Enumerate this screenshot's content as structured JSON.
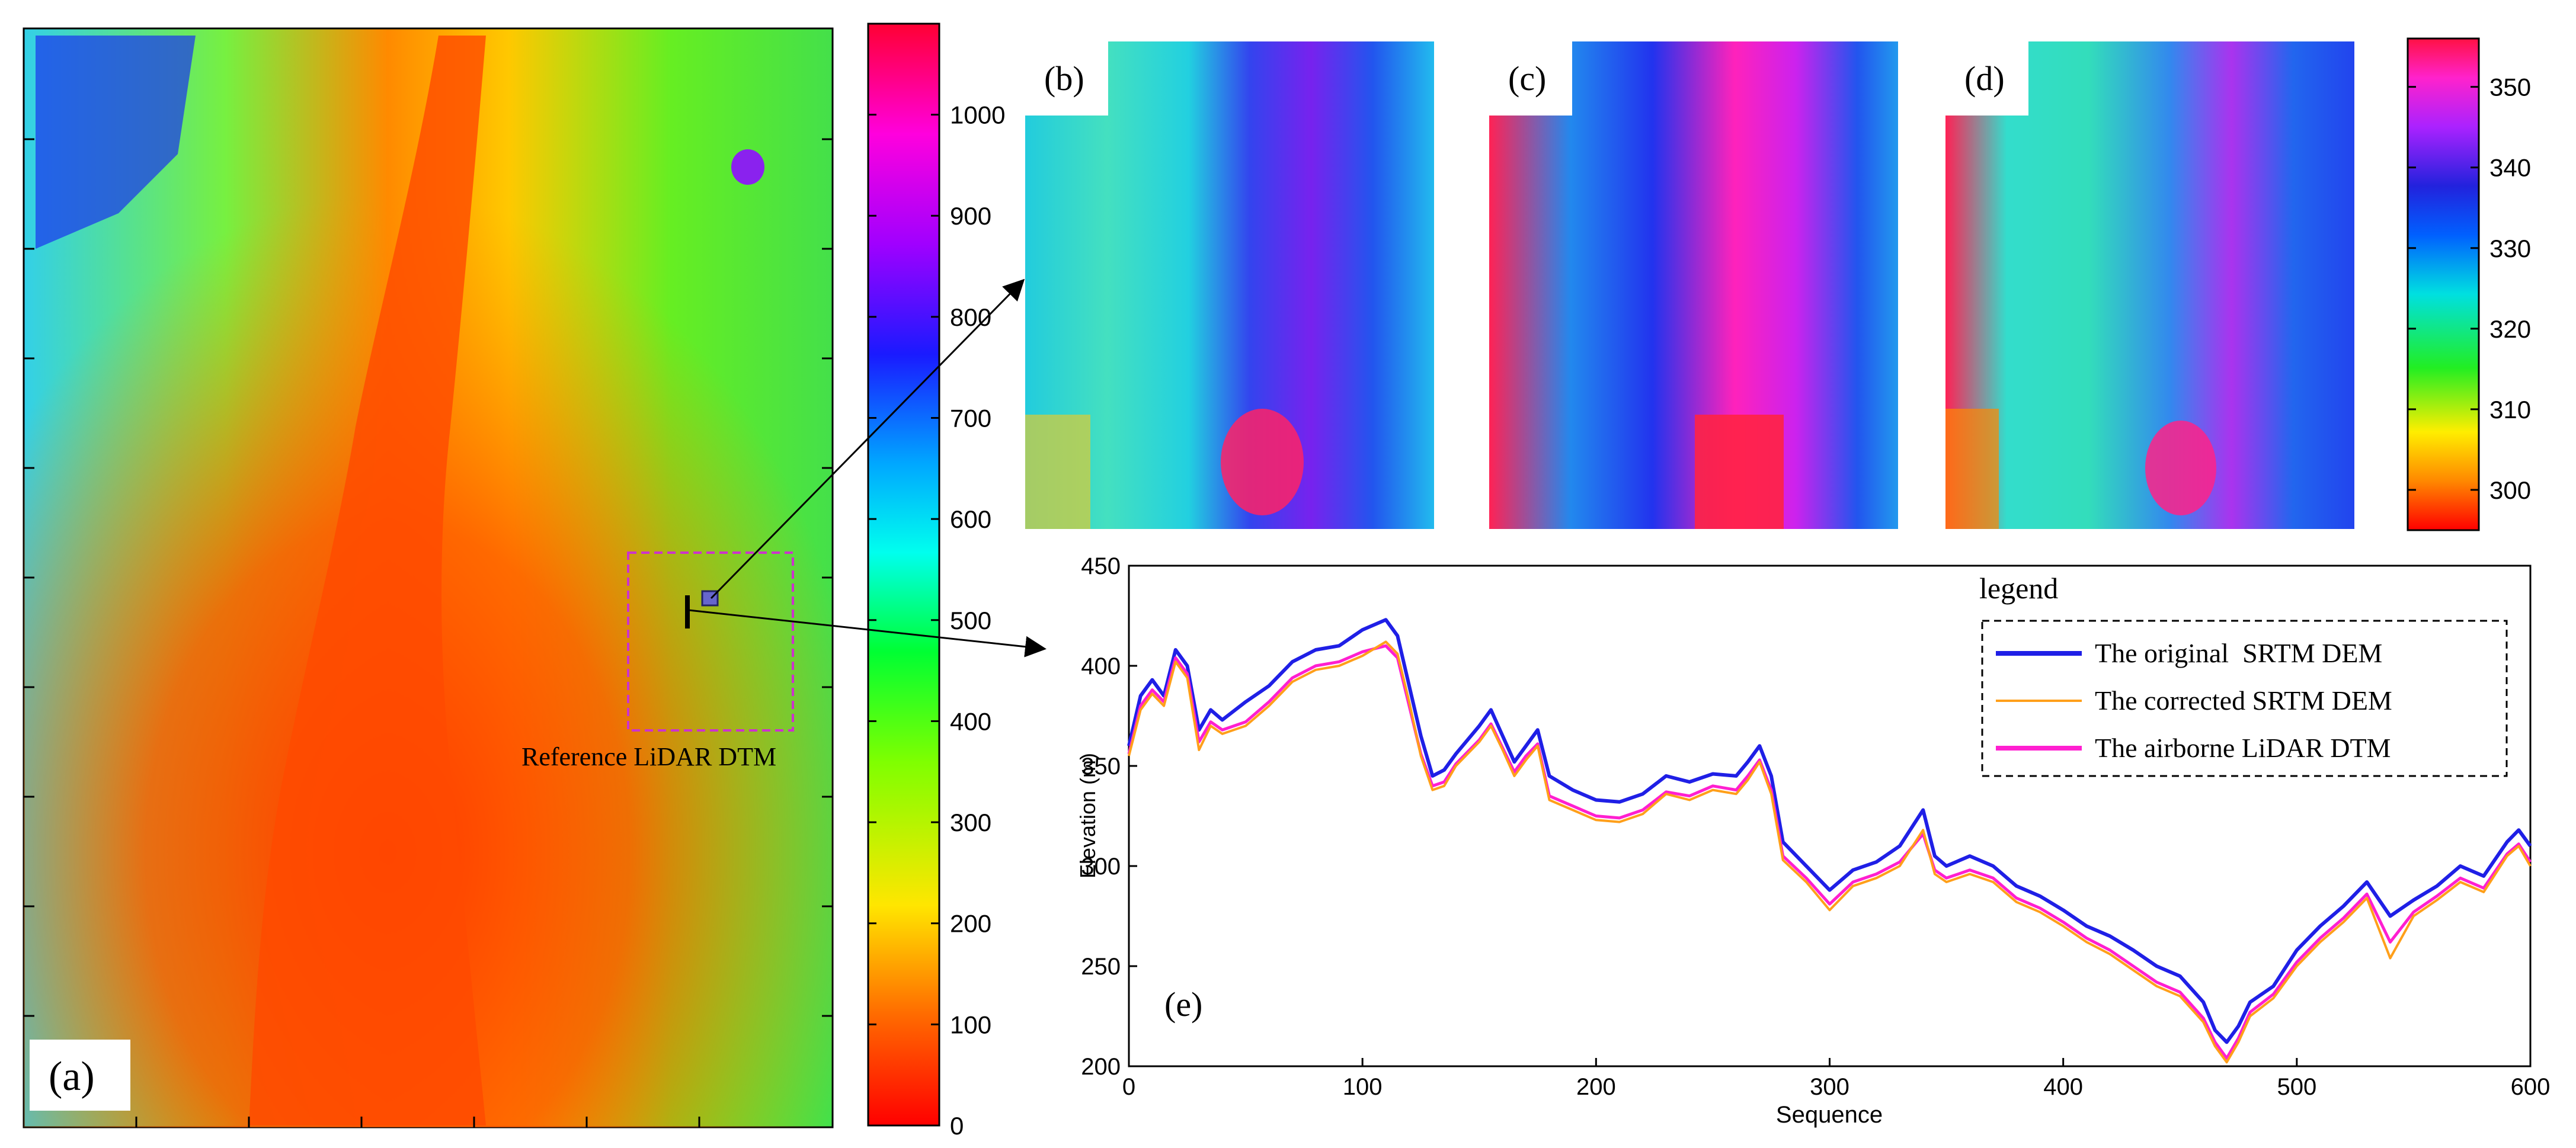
{
  "panels": {
    "a": {
      "label": "(a)",
      "annotation": "Reference LiDAR DTM"
    },
    "b": {
      "label": "(b)"
    },
    "c": {
      "label": "(c)"
    },
    "d": {
      "label": "(d)"
    },
    "e": {
      "label": "(e)"
    }
  },
  "colorbar_large": {
    "ticks": [
      "0",
      "100",
      "200",
      "300",
      "400",
      "500",
      "600",
      "700",
      "800",
      "900",
      "1000"
    ],
    "range": [
      0,
      1090
    ]
  },
  "colorbar_small": {
    "ticks": [
      "300",
      "310",
      "320",
      "330",
      "340",
      "350"
    ],
    "range": [
      295,
      356
    ]
  },
  "colors": {
    "original": "#1f1fe6",
    "corrected": "#ff9f1a",
    "lidar": "#ff1fd0",
    "annotation_box": "#cc33cc",
    "inset_marker": "#6666cc"
  },
  "chart_data": {
    "type": "line",
    "title": "",
    "xlabel": "Sequence",
    "ylabel": "Elevation (m)",
    "xlim": [
      0,
      600
    ],
    "ylim": [
      200,
      450
    ],
    "x_ticks": [
      "0",
      "100",
      "200",
      "300",
      "400",
      "500",
      "600"
    ],
    "y_ticks": [
      "200",
      "250",
      "300",
      "350",
      "400",
      "450"
    ],
    "legend_title": "legend",
    "series": [
      {
        "name": "The original  SRTM DEM",
        "x": [
          0,
          5,
          10,
          15,
          20,
          25,
          30,
          35,
          40,
          50,
          60,
          70,
          80,
          90,
          100,
          110,
          115,
          120,
          125,
          130,
          135,
          140,
          150,
          155,
          160,
          165,
          170,
          175,
          180,
          190,
          200,
          210,
          220,
          230,
          240,
          250,
          260,
          265,
          270,
          275,
          280,
          290,
          300,
          310,
          320,
          330,
          340,
          345,
          350,
          360,
          370,
          380,
          390,
          400,
          410,
          420,
          430,
          440,
          450,
          460,
          465,
          470,
          475,
          480,
          490,
          500,
          510,
          520,
          530,
          540,
          550,
          560,
          570,
          580,
          590,
          595,
          600
        ],
        "values": [
          360,
          385,
          393,
          385,
          408,
          400,
          368,
          378,
          373,
          382,
          390,
          402,
          408,
          410,
          418,
          423,
          415,
          390,
          365,
          345,
          348,
          356,
          370,
          378,
          365,
          352,
          360,
          368,
          345,
          338,
          333,
          332,
          336,
          345,
          342,
          346,
          345,
          352,
          360,
          345,
          312,
          300,
          288,
          298,
          302,
          310,
          328,
          305,
          300,
          305,
          300,
          290,
          285,
          278,
          270,
          265,
          258,
          250,
          245,
          232,
          218,
          212,
          220,
          232,
          240,
          258,
          270,
          280,
          292,
          275,
          283,
          290,
          300,
          295,
          312,
          318,
          310
        ]
      },
      {
        "name": "The corrected SRTM DEM",
        "x": [
          0,
          5,
          10,
          15,
          20,
          25,
          30,
          35,
          40,
          50,
          60,
          70,
          80,
          90,
          100,
          110,
          115,
          120,
          125,
          130,
          135,
          140,
          150,
          155,
          160,
          165,
          170,
          175,
          180,
          190,
          200,
          210,
          220,
          230,
          240,
          250,
          260,
          265,
          270,
          275,
          280,
          290,
          300,
          310,
          320,
          330,
          340,
          345,
          350,
          360,
          370,
          380,
          390,
          400,
          410,
          420,
          430,
          440,
          450,
          460,
          465,
          470,
          475,
          480,
          490,
          500,
          510,
          520,
          530,
          540,
          550,
          560,
          570,
          580,
          590,
          595,
          600
        ],
        "values": [
          355,
          378,
          386,
          380,
          402,
          394,
          358,
          370,
          366,
          370,
          380,
          392,
          398,
          400,
          405,
          412,
          406,
          382,
          355,
          338,
          340,
          350,
          362,
          370,
          358,
          345,
          353,
          360,
          333,
          328,
          323,
          322,
          326,
          336,
          333,
          338,
          336,
          343,
          352,
          336,
          303,
          292,
          278,
          290,
          294,
          300,
          318,
          296,
          292,
          296,
          292,
          282,
          277,
          270,
          262,
          256,
          248,
          240,
          235,
          222,
          210,
          202,
          212,
          225,
          234,
          250,
          262,
          272,
          284,
          254,
          275,
          283,
          292,
          287,
          305,
          310,
          300
        ]
      },
      {
        "name": "The airborne LiDAR DTM",
        "x": [
          0,
          5,
          10,
          15,
          20,
          25,
          30,
          35,
          40,
          50,
          60,
          70,
          80,
          90,
          100,
          110,
          115,
          120,
          125,
          130,
          135,
          140,
          150,
          155,
          160,
          165,
          170,
          175,
          180,
          190,
          200,
          210,
          220,
          230,
          240,
          250,
          260,
          265,
          270,
          275,
          280,
          290,
          300,
          310,
          320,
          330,
          340,
          345,
          350,
          360,
          370,
          380,
          390,
          400,
          410,
          420,
          430,
          440,
          450,
          460,
          465,
          470,
          475,
          480,
          490,
          500,
          510,
          520,
          530,
          540,
          550,
          560,
          570,
          580,
          590,
          595,
          600
        ],
        "values": [
          356,
          380,
          388,
          382,
          404,
          396,
          362,
          372,
          368,
          372,
          382,
          394,
          400,
          402,
          407,
          410,
          404,
          380,
          356,
          340,
          342,
          351,
          363,
          371,
          359,
          347,
          355,
          361,
          335,
          330,
          325,
          324,
          328,
          337,
          335,
          340,
          338,
          345,
          353,
          338,
          305,
          294,
          281,
          292,
          296,
          302,
          316,
          298,
          294,
          298,
          294,
          284,
          279,
          272,
          264,
          258,
          250,
          242,
          237,
          224,
          212,
          204,
          214,
          227,
          236,
          252,
          264,
          274,
          286,
          262,
          277,
          285,
          294,
          289,
          306,
          311,
          302
        ]
      }
    ]
  }
}
